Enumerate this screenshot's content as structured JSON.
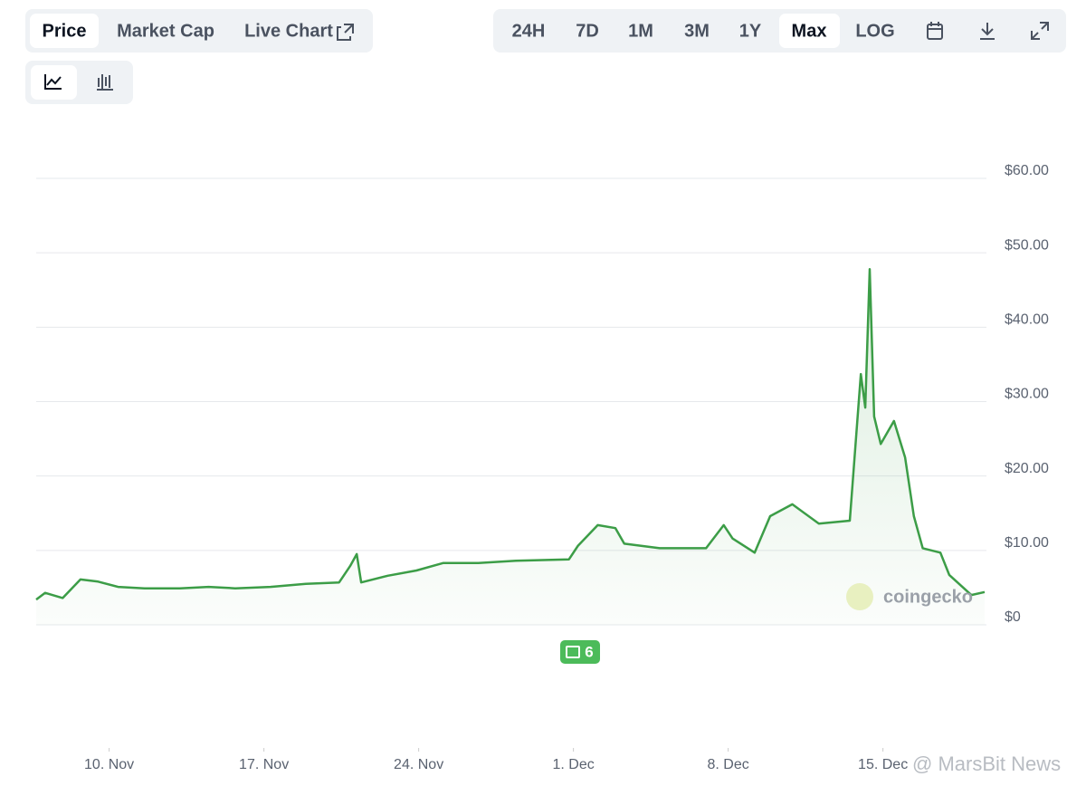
{
  "tabs": [
    "Price",
    "Market Cap",
    "Live Chart"
  ],
  "ranges": [
    "24H",
    "7D",
    "1M",
    "3M",
    "1Y",
    "Max",
    "LOG"
  ],
  "news_badge": "6",
  "watermark": "coingecko",
  "credit": "@ MarsBit News",
  "chart_data": {
    "type": "line",
    "color": "#3c9d47",
    "x": [
      6.7,
      7.1,
      7.9,
      8.7,
      9.5,
      10.4,
      11.6,
      13.2,
      14.5,
      15.7,
      17.3,
      18.9,
      20.4,
      20.9,
      21.2,
      21.4,
      22.6,
      23.9,
      25.1,
      26.7,
      28.4,
      30.8,
      31.2,
      32.1,
      32.9,
      33.3,
      34.9,
      37.0,
      37.8,
      38.2,
      39.2,
      39.9,
      40.9,
      42.1,
      43.5,
      44.0,
      44.2,
      44.4,
      44.6,
      44.9,
      45.5,
      46.0,
      46.4,
      46.8,
      47.6,
      48.0,
      49.0,
      49.6
    ],
    "values": [
      3.4,
      4.3,
      3.6,
      6.1,
      5.8,
      5.1,
      4.9,
      4.9,
      5.1,
      4.9,
      5.1,
      5.5,
      5.7,
      7.9,
      9.5,
      5.7,
      6.6,
      7.3,
      8.3,
      8.3,
      8.6,
      8.8,
      10.6,
      13.4,
      13.0,
      10.9,
      10.3,
      10.3,
      13.4,
      11.6,
      9.7,
      14.6,
      16.2,
      13.6,
      14.0,
      33.7,
      29.2,
      47.8,
      28.0,
      24.3,
      27.4,
      22.5,
      14.6,
      10.3,
      9.7,
      6.7,
      4.0,
      4.4
    ],
    "xlim": [
      6.7,
      49.6
    ],
    "xticks": [
      {
        "value": 10,
        "label": "10. Nov"
      },
      {
        "value": 17,
        "label": "17. Nov"
      },
      {
        "value": 24,
        "label": "24. Nov"
      },
      {
        "value": 31,
        "label": "1. Dec"
      },
      {
        "value": 38,
        "label": "8. Dec"
      },
      {
        "value": 45,
        "label": "15. Dec"
      }
    ],
    "ylim": [
      0,
      60
    ],
    "yticks": [
      {
        "value": 0,
        "label": "$0"
      },
      {
        "value": 10,
        "label": "$10.00"
      },
      {
        "value": 20,
        "label": "$20.00"
      },
      {
        "value": 30,
        "label": "$30.00"
      },
      {
        "value": 40,
        "label": "$40.00"
      },
      {
        "value": 50,
        "label": "$50.00"
      },
      {
        "value": 60,
        "label": "$60.00"
      }
    ],
    "grid": true
  }
}
